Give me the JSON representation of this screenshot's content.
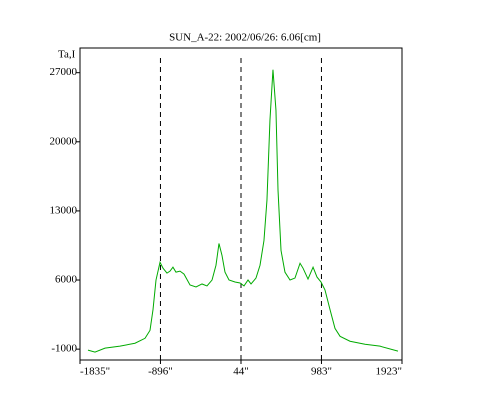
{
  "chart_data": {
    "type": "line",
    "title": "SUN_A-22: 2002/06/26: 6.06[cm]",
    "y_label": "Ta,I",
    "x": [
      -1742,
      -1660,
      -1543,
      -1368,
      -1193,
      -1076,
      -1018,
      -983,
      -948,
      -901,
      -866,
      -820,
      -785,
      -750,
      -715,
      -668,
      -621,
      -551,
      -481,
      -411,
      -353,
      -294,
      -248,
      -213,
      -178,
      -143,
      -96,
      -26,
      33,
      79,
      126,
      161,
      219,
      266,
      312,
      347,
      382,
      417,
      452,
      476,
      511,
      557,
      616,
      674,
      733,
      768,
      826,
      885,
      931,
      978,
      1024,
      1083,
      1141,
      1200,
      1316,
      1491,
      1666,
      1876
    ],
    "series": [
      {
        "color": "#00aa00",
        "values": [
          -1100,
          -1300,
          -900,
          -700,
          -400,
          100,
          900,
          3000,
          6000,
          7800,
          7200,
          6700,
          6900,
          7300,
          6800,
          6900,
          6600,
          5500,
          5300,
          5600,
          5400,
          6000,
          7500,
          9700,
          8500,
          6800,
          6000,
          5800,
          5700,
          5400,
          6000,
          5600,
          6200,
          7500,
          10000,
          14100,
          22200,
          27300,
          23200,
          15100,
          9000,
          6800,
          6000,
          6200,
          7700,
          7200,
          6100,
          7300,
          6300,
          5800,
          5000,
          3000,
          1100,
          300,
          -200,
          -500,
          -700,
          -1200
        ]
      }
    ],
    "xlim": [
      -1835,
      1923
    ],
    "xticks": [
      {
        "value": -1835,
        "label": "-1835\""
      },
      {
        "value": -896,
        "label": "-896\""
      },
      {
        "value": 44,
        "label": "44\""
      },
      {
        "value": 983,
        "label": "983\""
      },
      {
        "value": 1923,
        "label": "1923\""
      }
    ],
    "ylim": [
      -2100,
      29500
    ],
    "yticks": [
      -1000,
      6000,
      13000,
      20000,
      27000
    ],
    "vlines": [
      -896,
      44,
      983
    ]
  }
}
